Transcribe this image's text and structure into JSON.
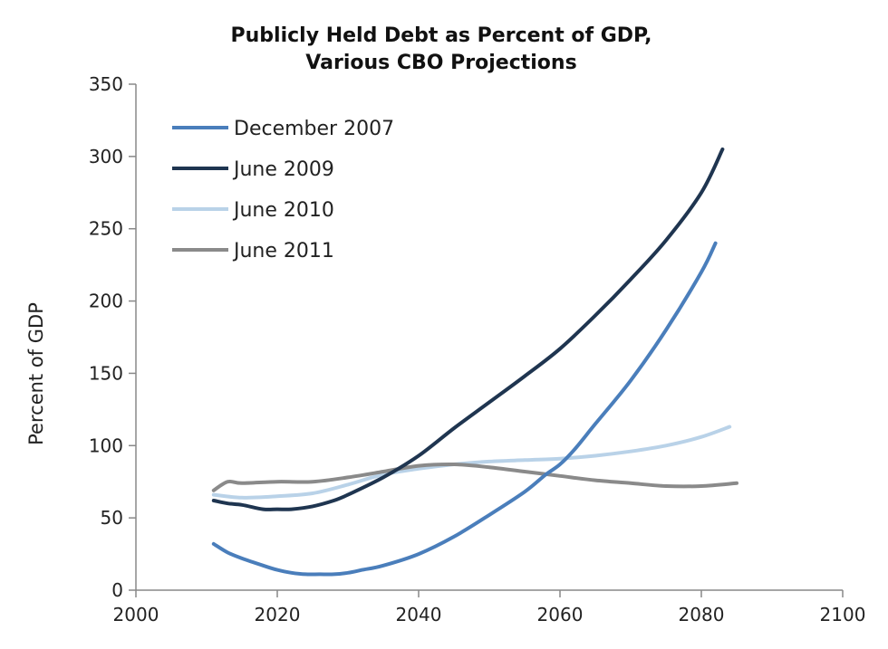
{
  "chart_data": {
    "type": "line",
    "title": "Publicly Held Debt as Percent of GDP,",
    "subtitle": "Various CBO Projections",
    "xlabel": "",
    "ylabel": "Percent of GDP",
    "xlim": [
      2000,
      2100
    ],
    "ylim": [
      0,
      350
    ],
    "xticks": [
      2000,
      2020,
      2040,
      2060,
      2080,
      2100
    ],
    "yticks": [
      0,
      50,
      100,
      150,
      200,
      250,
      300,
      350
    ],
    "grid": false,
    "legend_position": "top-left",
    "series": [
      {
        "name": "December 2007",
        "color": "#4a7ebb",
        "x": [
          2011,
          2013,
          2015,
          2018,
          2020,
          2022,
          2024,
          2026,
          2028,
          2030,
          2032,
          2035,
          2040,
          2045,
          2050,
          2055,
          2058,
          2060,
          2062,
          2065,
          2070,
          2075,
          2080,
          2082
        ],
        "y": [
          32,
          26,
          22,
          17,
          14,
          12,
          11,
          11,
          11,
          12,
          14,
          17,
          25,
          37,
          52,
          68,
          80,
          87,
          97,
          115,
          145,
          180,
          220,
          240
        ]
      },
      {
        "name": "June 2009",
        "color": "#1f3550",
        "x": [
          2011,
          2013,
          2015,
          2018,
          2020,
          2022,
          2025,
          2028,
          2030,
          2035,
          2040,
          2045,
          2050,
          2055,
          2060,
          2065,
          2070,
          2075,
          2080,
          2083
        ],
        "y": [
          62,
          60,
          59,
          56,
          56,
          56,
          58,
          62,
          66,
          78,
          93,
          112,
          130,
          148,
          167,
          190,
          215,
          242,
          275,
          305
        ]
      },
      {
        "name": "June 2010",
        "color": "#b9d2e8",
        "x": [
          2011,
          2015,
          2020,
          2025,
          2030,
          2035,
          2040,
          2045,
          2050,
          2055,
          2060,
          2065,
          2070,
          2075,
          2080,
          2084
        ],
        "y": [
          66,
          64,
          65,
          67,
          73,
          80,
          84,
          87,
          89,
          90,
          91,
          93,
          96,
          100,
          106,
          113
        ]
      },
      {
        "name": "June 2011",
        "color": "#8a8a8a",
        "x": [
          2011,
          2013,
          2015,
          2020,
          2025,
          2030,
          2035,
          2040,
          2045,
          2050,
          2055,
          2060,
          2065,
          2070,
          2075,
          2080,
          2085
        ],
        "y": [
          69,
          75,
          74,
          75,
          75,
          78,
          82,
          86,
          87,
          85,
          82,
          79,
          76,
          74,
          72,
          72,
          74
        ]
      }
    ]
  }
}
